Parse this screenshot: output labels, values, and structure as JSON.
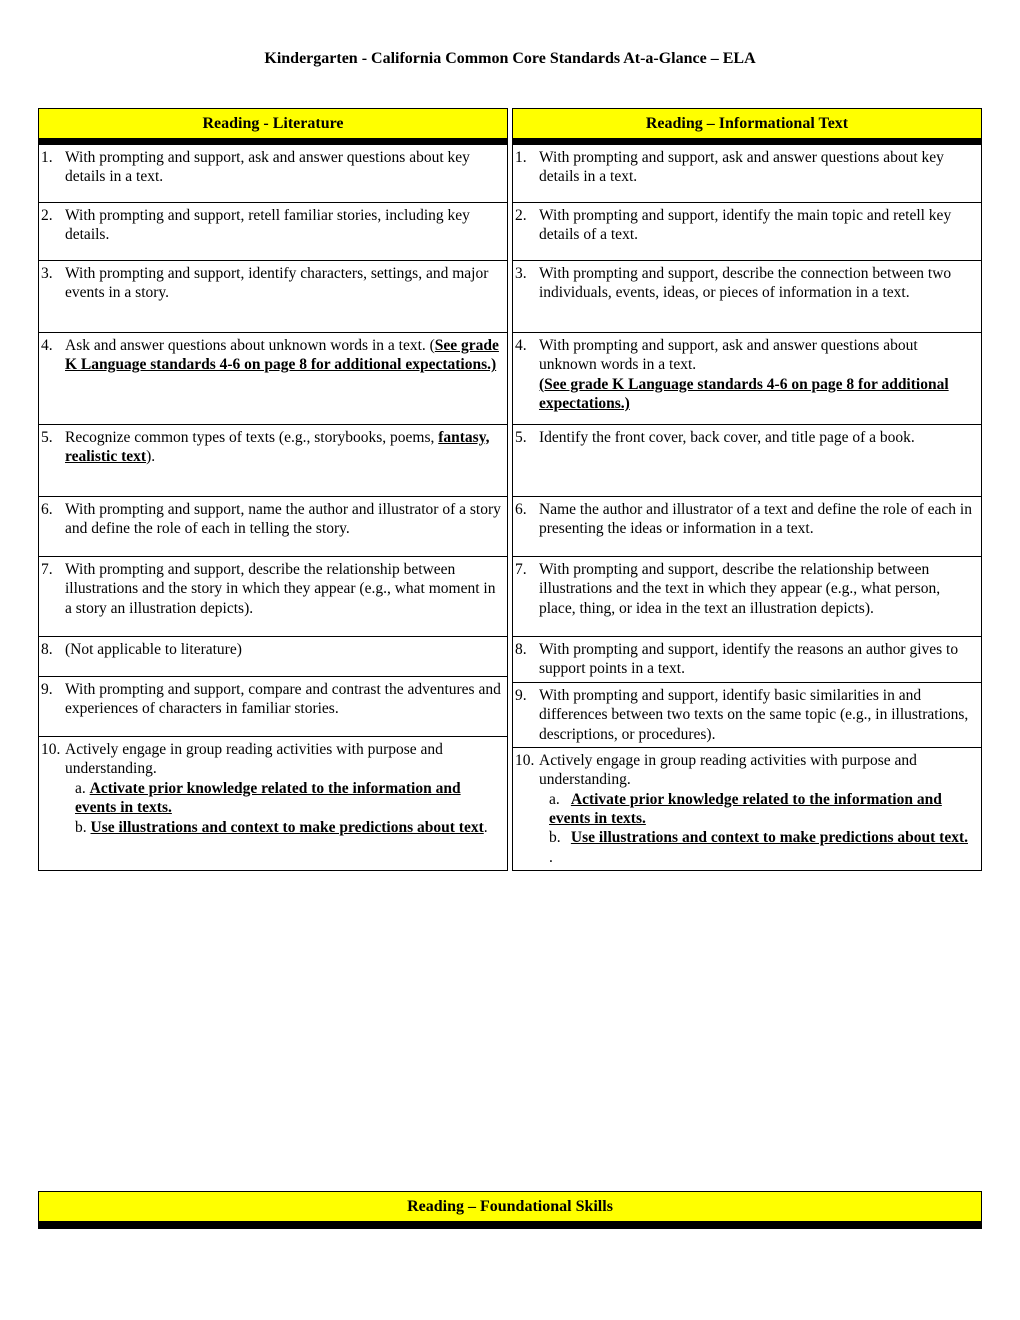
{
  "title": "Kindergarten - California Common Core Standards At-a-Glance – ELA",
  "leftHeader": "Reading - Literature",
  "rightHeader": "Reading – Informational Text",
  "bottomHeader": "Reading – Foundational Skills",
  "left": {
    "r1": {
      "num": "1.",
      "text": "With prompting and support, ask and answer questions about key details in a text."
    },
    "r2": {
      "num": "2.",
      "text": "With prompting and support, retell familiar stories, including key details."
    },
    "r3": {
      "num": "3.",
      "text": "With prompting and support, identify characters, settings, and major events in a story."
    },
    "r4": {
      "num": "4.",
      "pre": "Ask and answer questions about unknown words in a text. (",
      "u": "See grade K Language standards 4-6 on page 8 for additional expectations.)",
      "post": ""
    },
    "r5": {
      "num": "5.",
      "pre": "Recognize common types of texts (e.g., storybooks, poems, ",
      "u": "fantasy, realistic text",
      "post": ")."
    },
    "r6": {
      "num": "6.",
      "text": "With prompting and support, name the author and illustrator of a story and define the role of each in telling the story."
    },
    "r7": {
      "num": "7.",
      "text": "With prompting and support, describe the relationship between illustrations and the story in which they appear (e.g., what moment in a story an illustration depicts)."
    },
    "r8": {
      "num": "8.",
      "text": "(Not applicable to literature)"
    },
    "r9": {
      "num": "9.",
      "text": "With prompting and support, compare and contrast the adventures and experiences of characters in familiar stories."
    },
    "r10": {
      "num": "10.",
      "intro": "Actively engage in group reading activities with purpose and understanding.",
      "a_label": "a.",
      "a_text": "Activate prior knowledge related to the information and events in texts.",
      "b_label": "b.",
      "b_text": "Use illustrations and context to make predictions about text",
      "b_post": "."
    }
  },
  "right": {
    "r1": {
      "num": "1.",
      "text": "With prompting and support, ask and answer questions about key details in a text."
    },
    "r2": {
      "num": "2.",
      "text": "With prompting and support, identify the main topic and retell key details of a text."
    },
    "r3": {
      "num": "3.",
      "text": "With prompting and support, describe the connection between two individuals, events, ideas, or pieces of information in a text."
    },
    "r4": {
      "num": "4.",
      "pre": "With prompting and support, ask and answer questions about unknown words in a text.",
      "u": "(See grade K Language standards 4-6 on page 8 for additional expectations.)"
    },
    "r5": {
      "num": "5.",
      "text": "Identify the front cover, back cover, and title page of a book."
    },
    "r6": {
      "num": "6.",
      "text": "Name the author and illustrator of a text and define the role of each in presenting the ideas or information in a text."
    },
    "r7": {
      "num": "7.",
      "text": "With prompting and support, describe the relationship between illustrations and the text in which they appear (e.g., what person, place, thing, or idea in the text an illustration depicts)."
    },
    "r8": {
      "num": "8.",
      "text": "With prompting and support, identify the reasons an author gives to support points in a text."
    },
    "r9": {
      "num": "9.",
      "text": "With prompting and support, identify basic similarities in and differences between two texts on the same topic (e.g., in illustrations, descriptions, or procedures)."
    },
    "r10": {
      "num": "10.",
      "intro": "Actively engage in group reading activities with purpose and understanding.",
      "a_label": "a.",
      "a_text": "Activate prior knowledge related to the information and events in texts.",
      "b_label": "b.",
      "b_text": "Use illustrations and context to make predictions about text.",
      "b_post": " ."
    }
  },
  "colors": {
    "headerBg": "#ffff00",
    "border": "#000000",
    "thickDivider": "#000000",
    "text": "#000000",
    "pageBg": "#ffffff"
  },
  "typography": {
    "title_fontsize": 16,
    "header_fontsize": 16,
    "body_fontsize": 15.5,
    "font_family": "Times New Roman"
  },
  "layout": {
    "pageWidth": 1020,
    "pageHeight": 1320,
    "thickDividerHeight": 6
  }
}
